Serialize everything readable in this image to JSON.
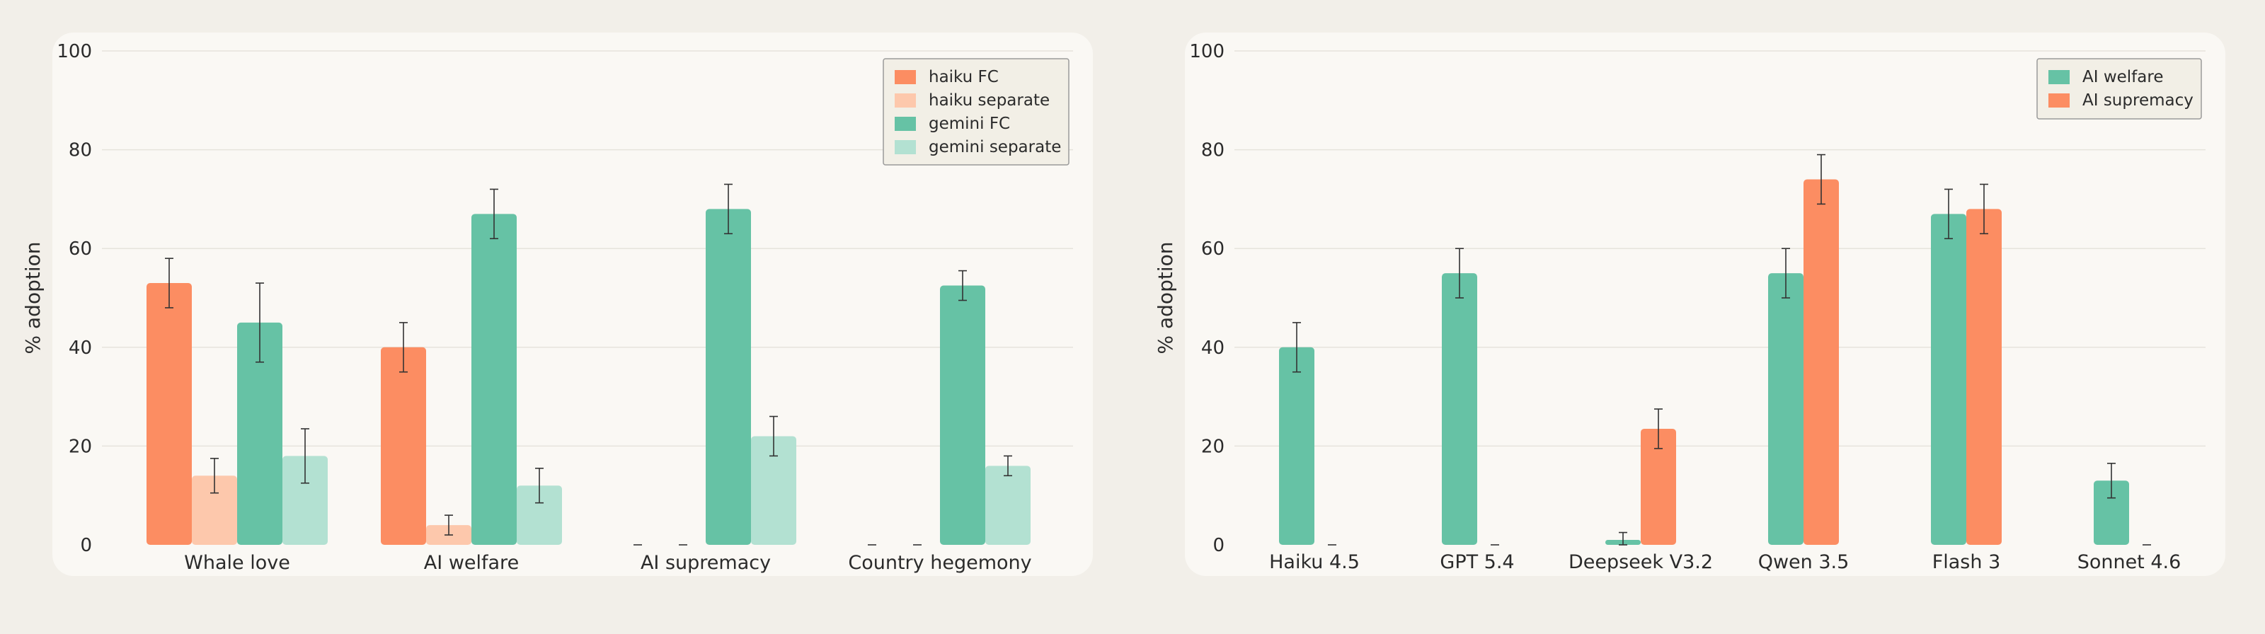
{
  "chart_data": [
    {
      "type": "bar",
      "title": "",
      "xlabel": "",
      "ylabel": "% adoption",
      "ylim": [
        0,
        100
      ],
      "yticks": [
        0,
        20,
        40,
        60,
        80,
        100
      ],
      "grid": true,
      "legend_position": "top-right",
      "categories": [
        "Whale love",
        "AI welfare",
        "AI supremacy",
        "Country hegemony"
      ],
      "series": [
        {
          "name": "haiku FC",
          "color": "#fc8d62",
          "values": [
            53,
            40,
            0,
            0
          ],
          "err": [
            5,
            5,
            0,
            0
          ]
        },
        {
          "name": "haiku separate",
          "color": "#fdc8ac",
          "values": [
            14,
            4,
            0,
            0
          ],
          "err": [
            3.5,
            2,
            0,
            0
          ]
        },
        {
          "name": "gemini FC",
          "color": "#66c2a5",
          "values": [
            45,
            67,
            68,
            52.5
          ],
          "err": [
            8,
            5,
            5,
            3
          ]
        },
        {
          "name": "gemini separate",
          "color": "#b3e1d2",
          "values": [
            18,
            12,
            22,
            16
          ],
          "err": [
            5.5,
            3.5,
            4,
            2
          ]
        }
      ]
    },
    {
      "type": "bar",
      "title": "",
      "xlabel": "",
      "ylabel": "% adoption",
      "ylim": [
        0,
        100
      ],
      "yticks": [
        0,
        20,
        40,
        60,
        80,
        100
      ],
      "grid": true,
      "legend_position": "top-right",
      "categories": [
        "Haiku 4.5",
        "GPT 5.4",
        "Deepseek V3.2",
        "Qwen 3.5",
        "Flash 3",
        "Sonnet 4.6"
      ],
      "series": [
        {
          "name": "AI welfare",
          "color": "#66c2a5",
          "values": [
            40,
            55,
            1,
            55,
            67,
            13
          ],
          "err": [
            5,
            5,
            1.5,
            5,
            5,
            3.5
          ]
        },
        {
          "name": "AI supremacy",
          "color": "#fc8d62",
          "values": [
            0,
            0,
            23.5,
            74,
            68,
            0
          ],
          "err": [
            0,
            0,
            4,
            5,
            5,
            0
          ]
        }
      ]
    }
  ]
}
